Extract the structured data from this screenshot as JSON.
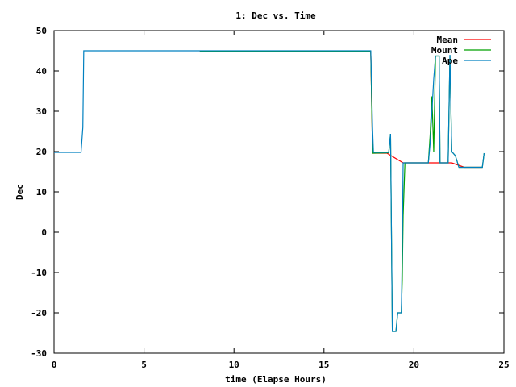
{
  "chart_data": {
    "type": "line",
    "title": "1: Dec vs. Time",
    "xlabel": "time (Elapse Hours)",
    "ylabel": "Dec",
    "xlim": [
      0,
      25
    ],
    "ylim": [
      -30,
      50
    ],
    "xticks": [
      0,
      5,
      10,
      15,
      20,
      25
    ],
    "yticks": [
      -30,
      -20,
      -10,
      0,
      10,
      20,
      30,
      40,
      50
    ],
    "grid": false,
    "legend_position": "top-right",
    "series": [
      {
        "name": "Mean",
        "color": "#ff0000",
        "points": [
          [
            8.1,
            44.8
          ],
          [
            17.6,
            44.8
          ],
          [
            17.7,
            19.6
          ],
          [
            18.5,
            19.6
          ],
          [
            19.4,
            17.2
          ],
          [
            20.8,
            17.2
          ],
          [
            21.5,
            17.2
          ],
          [
            22.1,
            17.2
          ],
          [
            22.8,
            16.1
          ],
          [
            23.8,
            16.1
          ]
        ]
      },
      {
        "name": "Mount",
        "color": "#00a000",
        "points": [
          [
            8.1,
            44.8
          ],
          [
            17.6,
            44.8
          ],
          [
            17.7,
            19.6
          ],
          [
            18.6,
            19.7
          ],
          [
            18.7,
            24.4
          ],
          [
            18.8,
            -24.6
          ],
          [
            19.0,
            -24.6
          ],
          [
            19.1,
            -20.0
          ],
          [
            19.3,
            -20.0
          ],
          [
            19.35,
            -12.0
          ],
          [
            19.4,
            4.0
          ],
          [
            19.5,
            17.2
          ],
          [
            20.8,
            17.2
          ],
          [
            20.9,
            24.0
          ],
          [
            21.0,
            33.7
          ],
          [
            21.1,
            20.0
          ],
          [
            21.2,
            43.7
          ],
          [
            21.4,
            43.7
          ],
          [
            21.45,
            17.2
          ],
          [
            21.9,
            17.2
          ],
          [
            22.0,
            43.7
          ],
          [
            22.1,
            20.0
          ],
          [
            22.3,
            19.0
          ],
          [
            22.5,
            16.1
          ],
          [
            23.8,
            16.1
          ],
          [
            23.9,
            19.6
          ]
        ]
      },
      {
        "name": "Ape",
        "color": "#0080c0",
        "points": [
          [
            0.0,
            19.8
          ],
          [
            1.5,
            19.8
          ],
          [
            1.6,
            26.0
          ],
          [
            1.65,
            45.0
          ],
          [
            8.0,
            45.0
          ],
          [
            17.6,
            45.0
          ],
          [
            17.7,
            26.0
          ],
          [
            17.75,
            19.8
          ],
          [
            18.6,
            19.8
          ],
          [
            18.7,
            24.4
          ],
          [
            18.8,
            -24.6
          ],
          [
            19.0,
            -24.6
          ],
          [
            19.1,
            -20.0
          ],
          [
            19.3,
            -20.0
          ],
          [
            19.35,
            -5.0
          ],
          [
            19.4,
            17.2
          ],
          [
            20.8,
            17.2
          ],
          [
            20.9,
            22.0
          ],
          [
            21.0,
            30.0
          ],
          [
            21.1,
            38.0
          ],
          [
            21.2,
            43.7
          ],
          [
            21.4,
            43.7
          ],
          [
            21.45,
            17.2
          ],
          [
            21.9,
            17.2
          ],
          [
            22.0,
            44.0
          ],
          [
            22.1,
            20.0
          ],
          [
            22.3,
            19.0
          ],
          [
            22.5,
            16.1
          ],
          [
            23.8,
            16.1
          ],
          [
            23.9,
            19.6
          ]
        ]
      }
    ]
  }
}
